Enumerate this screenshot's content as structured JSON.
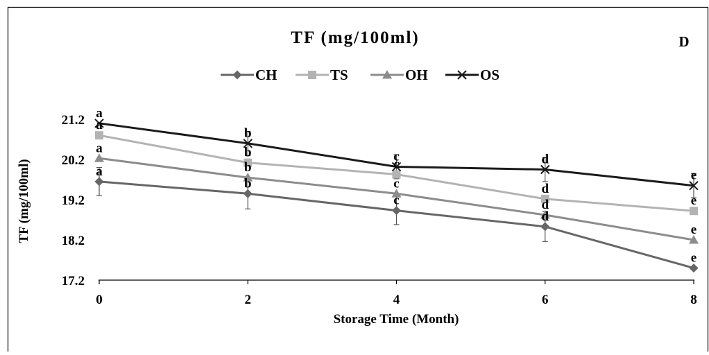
{
  "chart_data": {
    "type": "line",
    "title": "TF (mg/100ml)",
    "panel_label": "D",
    "xlabel": "Storage Time (Month)",
    "ylabel": "TF (mg/100ml)",
    "x": [
      0,
      2,
      4,
      6,
      8
    ],
    "x_ticks": [
      "0",
      "2",
      "4",
      "6",
      "8"
    ],
    "y_ticks": [
      "17.2",
      "18.2",
      "19.2",
      "20.2",
      "21.2"
    ],
    "y_tick_values": [
      17.2,
      18.2,
      19.2,
      20.2,
      21.2
    ],
    "xlim": [
      0,
      8
    ],
    "ylim": [
      17.2,
      21.2
    ],
    "grid": false,
    "legend_position": "top",
    "series": [
      {
        "name": "CH",
        "marker": "diamond",
        "color": "#666666",
        "values": [
          19.65,
          19.35,
          18.93,
          18.53,
          17.5
        ],
        "error": [
          0.35,
          0.38,
          0.35,
          0.37,
          0.0
        ],
        "letters": [
          "a",
          "b",
          "c",
          "d",
          "e"
        ]
      },
      {
        "name": "TS",
        "marker": "square",
        "color": "#b3b3b3",
        "values": [
          20.8,
          20.12,
          19.83,
          19.22,
          18.92
        ],
        "error": [
          0.0,
          0.0,
          0.0,
          0.0,
          0.0
        ],
        "letters": [
          "a",
          "b",
          "c",
          "d",
          "e"
        ]
      },
      {
        "name": "OH",
        "marker": "triangle",
        "color": "#8c8c8c",
        "values": [
          20.23,
          19.75,
          19.35,
          18.82,
          18.2
        ],
        "error": [
          0.0,
          0.0,
          0.0,
          0.0,
          0.0
        ],
        "letters": [
          "a",
          "b",
          "c",
          "d",
          "e"
        ]
      },
      {
        "name": "OS",
        "marker": "x",
        "color": "#1a1a1a",
        "values": [
          21.1,
          20.6,
          20.02,
          19.95,
          19.55
        ],
        "error": [
          0.0,
          0.3,
          0.3,
          0.3,
          0.3
        ],
        "letters": [
          "a",
          "b",
          "c",
          "d",
          "e"
        ]
      }
    ]
  }
}
